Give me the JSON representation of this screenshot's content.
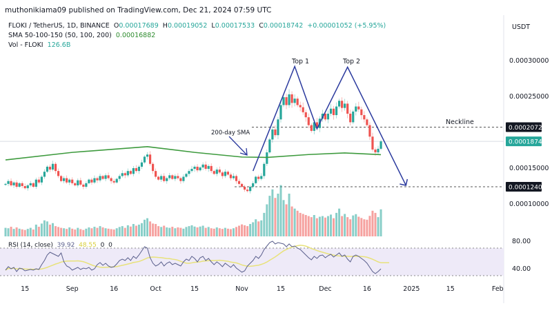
{
  "header": {
    "published": "muthonikiama09 published on TradingView.com, Dec 21, 2024 07:59 UTC",
    "symbol": "FLOKI / TetherUS, 1D, BINANCE",
    "o_label": "O",
    "o": "0.00017689",
    "h_label": "H",
    "h": "0.00019052",
    "l_label": "L",
    "l": "0.00017533",
    "c_label": "C",
    "c": "0.00018742",
    "change": "+0.00001052 (+5.95%)",
    "sma_label": "SMA 50-100-150 (50, 100, 200)",
    "sma_value": "0.00016882",
    "vol_label": "Vol - FLOKI",
    "vol_value": "126.6B",
    "rsi_label": "RSI (14, close)",
    "rsi_value": "39.92",
    "rsi_ma_value": "48.55",
    "rsi_extra1": "0",
    "rsi_extra2": "0"
  },
  "colors": {
    "up": "#26a69a",
    "down": "#ef5350",
    "sma": "#3d9a3d",
    "pattern": "#2b3a9e",
    "rsi": "#5a5f8c",
    "rsi_ma": "#e8e27a",
    "rsi_band": "#eeeaf8"
  },
  "chart_data": [
    {
      "type": "candlestick",
      "title": "",
      "currency_label": "USDT",
      "first_candle_date": "2024-08-08",
      "interval": "1D",
      "y_ticks": [
        "0.00030000",
        "0.00025000",
        "0.00015000",
        "0.00010000"
      ],
      "ylim": [
        8e-05,
        0.00033
      ],
      "x_ticks": [
        {
          "label": "15",
          "date": "2024-08-15"
        },
        {
          "label": "Sep",
          "date": "2024-09-01"
        },
        {
          "label": "16",
          "date": "2024-09-16"
        },
        {
          "label": "Oct",
          "date": "2024-10-01"
        },
        {
          "label": "15",
          "date": "2024-10-15"
        },
        {
          "label": "Nov",
          "date": "2024-11-01"
        },
        {
          "label": "15",
          "date": "2024-11-15"
        },
        {
          "label": "Dec",
          "date": "2024-12-01"
        },
        {
          "label": "16",
          "date": "2024-12-16"
        },
        {
          "label": "2025",
          "date": "2025-01-01"
        },
        {
          "label": "15",
          "date": "2025-01-15"
        },
        {
          "label": "Feb",
          "date": "2025-02-01"
        }
      ],
      "closes": [
        0.000128,
        0.000132,
        0.000126,
        0.00013,
        0.000124,
        0.000129,
        0.000125,
        0.000122,
        0.000126,
        0.000129,
        0.000124,
        0.000134,
        0.00013,
        0.000138,
        0.000145,
        0.000152,
        0.000148,
        0.000156,
        0.000146,
        0.000139,
        0.000132,
        0.000136,
        0.00013,
        0.000134,
        0.000129,
        0.000126,
        0.000133,
        0.000127,
        0.000124,
        0.000129,
        0.000134,
        0.00013,
        0.000136,
        0.000133,
        0.000139,
        0.000135,
        0.00014,
        0.000136,
        0.000132,
        0.00013,
        0.000135,
        0.000139,
        0.000143,
        0.00014,
        0.000146,
        0.000142,
        0.00015,
        0.000146,
        0.000152,
        0.000158,
        0.000166,
        0.000169,
        0.000156,
        0.000146,
        0.000138,
        0.000134,
        0.000139,
        0.000132,
        0.000136,
        0.00014,
        0.000135,
        0.000139,
        0.000136,
        0.000132,
        0.000138,
        0.000142,
        0.000146,
        0.000149,
        0.000152,
        0.000147,
        0.000151,
        0.000155,
        0.000149,
        0.000153,
        0.000146,
        0.000142,
        0.000148,
        0.000144,
        0.000139,
        0.000145,
        0.000141,
        0.000136,
        0.000139,
        0.000132,
        0.000128,
        0.000124,
        0.00012,
        0.000118,
        0.000124,
        0.000129,
        0.000138,
        0.000135,
        0.000139,
        0.000156,
        0.000172,
        0.00019,
        0.000204,
        0.000196,
        0.000218,
        0.000238,
        0.000249,
        0.000238,
        0.000253,
        0.000241,
        0.000247,
        0.000238,
        0.000235,
        0.000228,
        0.000221,
        0.00021,
        0.000202,
        0.000214,
        0.000206,
        0.000219,
        0.000226,
        0.000218,
        0.000226,
        0.000233,
        0.000224,
        0.000236,
        0.000244,
        0.000234,
        0.00024,
        0.000226,
        0.000214,
        0.000229,
        0.000236,
        0.000232,
        0.000224,
        0.000218,
        0.00021,
        0.000194,
        0.000176,
        0.000172,
        0.000177,
        0.00018742
      ],
      "sma200": [
        {
          "date": "2024-08-08",
          "value": 0.0001615
        },
        {
          "date": "2024-09-01",
          "value": 0.000172
        },
        {
          "date": "2024-09-28",
          "value": 0.00018
        },
        {
          "date": "2024-10-15",
          "value": 0.000172
        },
        {
          "date": "2024-11-01",
          "value": 0.0001655
        },
        {
          "date": "2024-11-10",
          "value": 0.000165
        },
        {
          "date": "2024-11-25",
          "value": 0.000169
        },
        {
          "date": "2024-12-08",
          "value": 0.0001712
        },
        {
          "date": "2024-12-21",
          "value": 0.0001688
        }
      ],
      "price_labels": [
        {
          "text": "0.00020724",
          "value": 0.00020724,
          "style": "dark"
        },
        {
          "text": "0.00018742",
          "value": 0.00018742,
          "style": "current"
        },
        {
          "text": "0.00012400",
          "value": 0.000124,
          "style": "dark"
        }
      ],
      "annotations": {
        "neckline_label": "Neckline",
        "top1_label": "Top 1",
        "top2_label": "Top 2",
        "sma_note": "200-day SMA",
        "pattern_points": [
          {
            "date": "2024-11-05",
            "value": 0.000146
          },
          {
            "date": "2024-11-20",
            "value": 0.000292
          },
          {
            "date": "2024-11-28",
            "value": 0.000205
          },
          {
            "date": "2024-12-09",
            "value": 0.000291
          },
          {
            "date": "2024-12-30",
            "value": 0.000126
          }
        ]
      }
    },
    {
      "type": "bar",
      "title": "Vol - FLOKI",
      "unit": "B",
      "volumes": [
        40,
        38,
        45,
        35,
        42,
        36,
        33,
        30,
        35,
        40,
        32,
        55,
        45,
        60,
        75,
        70,
        55,
        62,
        48,
        44,
        40,
        38,
        35,
        42,
        36,
        32,
        40,
        34,
        30,
        36,
        42,
        38,
        45,
        40,
        48,
        42,
        38,
        36,
        34,
        32,
        38,
        44,
        48,
        40,
        52,
        46,
        58,
        50,
        55,
        62,
        78,
        85,
        70,
        60,
        58,
        48,
        44,
        50,
        42,
        40,
        45,
        38,
        42,
        40,
        36,
        44,
        48,
        52,
        46,
        42,
        46,
        50,
        40,
        44,
        38,
        36,
        42,
        38,
        35,
        40,
        36,
        34,
        38,
        44,
        50,
        56,
        52,
        48,
        58,
        66,
        80,
        70,
        75,
        110,
        150,
        190,
        220,
        180,
        200,
        240,
        170,
        150,
        200,
        140,
        130,
        120,
        110,
        105,
        100,
        95,
        90,
        100,
        85,
        92,
        95,
        88,
        95,
        102,
        85,
        110,
        130,
        95,
        105,
        90,
        80,
        98,
        104,
        92,
        86,
        80,
        78,
        96,
        120,
        110,
        90,
        126.6
      ]
    },
    {
      "type": "line",
      "title": "RSI (14, close)",
      "y_ticks": [
        "80.00",
        "40.00"
      ],
      "bands": [
        70,
        30
      ],
      "ylim": [
        25,
        85
      ],
      "rsi": [
        38,
        43,
        40,
        42,
        36,
        41,
        40,
        37,
        38,
        39,
        38,
        40,
        39,
        46,
        52,
        60,
        64,
        62,
        60,
        58,
        63,
        50,
        44,
        42,
        38,
        40,
        42,
        39,
        41,
        40,
        42,
        38,
        40,
        46,
        49,
        45,
        48,
        44,
        42,
        43,
        47,
        52,
        54,
        52,
        56,
        52,
        58,
        55,
        60,
        66,
        72,
        70,
        56,
        48,
        44,
        46,
        50,
        44,
        48,
        50,
        46,
        48,
        46,
        44,
        50,
        54,
        52,
        58,
        55,
        50,
        56,
        58,
        52,
        55,
        50,
        46,
        50,
        47,
        43,
        48,
        45,
        42,
        46,
        41,
        38,
        35,
        37,
        44,
        48,
        52,
        58,
        55,
        60,
        68,
        73,
        78,
        80,
        76,
        78,
        77,
        76,
        72,
        76,
        72,
        73,
        70,
        68,
        64,
        60,
        56,
        53,
        58,
        55,
        59,
        60,
        56,
        59,
        61,
        57,
        60,
        63,
        58,
        60,
        54,
        50,
        58,
        60,
        58,
        55,
        52,
        48,
        42,
        36,
        33,
        36,
        39.92
      ]
    }
  ]
}
